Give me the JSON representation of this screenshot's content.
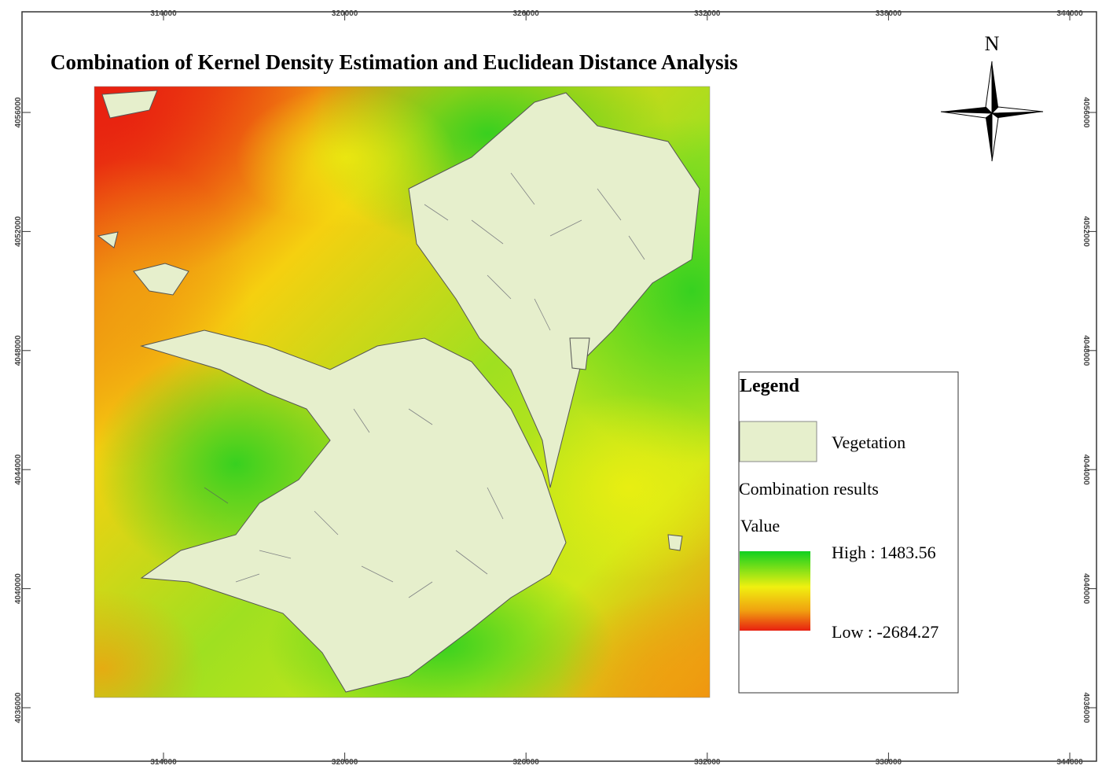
{
  "map": {
    "title": "Combination of Kernel Density Estimation and Euclidean Distance Analysis",
    "north": "N",
    "x_ticks": [
      314000,
      320000,
      326000,
      332000,
      338000,
      344000
    ],
    "y_ticks": [
      4056000,
      4052000,
      4048000,
      4044000,
      4040000,
      4036000
    ],
    "legend": {
      "title": "Legend",
      "vegetation": "Vegetation",
      "layer": "Combination results",
      "field": "Value",
      "high": "High : 1483.56",
      "low": "Low : -2684.27"
    }
  }
}
